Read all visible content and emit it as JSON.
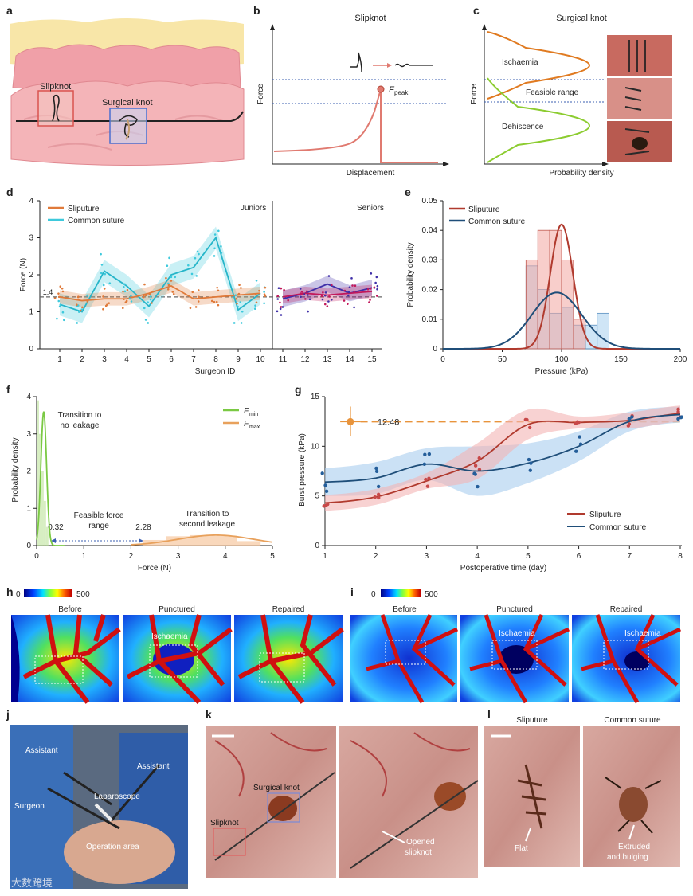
{
  "panel_letters": {
    "a": "a",
    "b": "b",
    "c": "c",
    "d": "d",
    "e": "e",
    "f": "f",
    "g": "g",
    "h": "h",
    "i": "i",
    "j": "j",
    "k": "k",
    "l": "l"
  },
  "panel_a": {
    "slipknot": "Slipknot",
    "surgical_knot": "Surgical knot"
  },
  "panel_b": {
    "title": "Slipknot",
    "ylabel": "Force",
    "xlabel": "Displacement",
    "peak_label": "F",
    "peak_sub": "peak"
  },
  "panel_c": {
    "title": "Surgical knot",
    "ylabel": "Force",
    "xlabel": "Probability density",
    "regions": [
      "Ischaemia",
      "Feasible range",
      "Dehiscence"
    ]
  },
  "panel_h": {
    "scale_min": "0",
    "scale_max": "500",
    "labels": [
      "Before",
      "Punctured",
      "Repaired"
    ],
    "ischaemia": "Ischaemia"
  },
  "panel_i": {
    "scale_min": "0",
    "scale_max": "500",
    "labels": [
      "Before",
      "Punctured",
      "Repaired"
    ],
    "ischaemia": "Ischaemia"
  },
  "panel_j": {
    "labels": [
      "Assistant",
      "Assistant",
      "Surgeon",
      "Laparoscope",
      "Operation area"
    ]
  },
  "panel_k": {
    "surgical_knot": "Surgical knot",
    "slipknot": "Slipknot",
    "opened_1": "Opened",
    "opened_2": "slipknot"
  },
  "panel_l": {
    "titles": [
      "Sliputure",
      "Common suture"
    ],
    "flat": "Flat",
    "extruded_1": "Extruded",
    "extruded_2": "and bulging"
  },
  "watermark": "大数跨境",
  "colors": {
    "sliputure": "#e07a3a",
    "common": "#3ec9dc",
    "sliputure_e": "#b03a2e",
    "common_e": "#1f4e79",
    "fmin": "#7ac943",
    "fmax": "#e8a15c",
    "junior_slip": "#e07a3a",
    "senior_slip": "#c2185b",
    "senior_common": "#3f2fa8"
  },
  "chart_data": [
    {
      "id": "d",
      "type": "line",
      "xlabel": "Surgeon ID",
      "ylabel": "Force (N)",
      "ylim": [
        0,
        4
      ],
      "yticks": [
        "0",
        "1",
        "2",
        "3",
        "4"
      ],
      "categories": [
        "1",
        "2",
        "3",
        "4",
        "5",
        "6",
        "7",
        "8",
        "9",
        "10",
        "11",
        "12",
        "13",
        "14",
        "15"
      ],
      "group_labels": {
        "juniors": "Juniors",
        "seniors": "Seniors"
      },
      "reference_line": {
        "value": 1.4,
        "label": "1.4"
      },
      "series": [
        {
          "name": "Sliputure",
          "values": [
            1.4,
            1.3,
            1.35,
            1.35,
            1.5,
            1.7,
            1.35,
            1.4,
            1.45,
            1.5,
            1.4,
            1.5,
            1.45,
            1.5,
            1.55
          ]
        },
        {
          "name": "Common suture",
          "values": [
            1.2,
            1.0,
            2.1,
            1.7,
            1.15,
            2.0,
            2.2,
            3.0,
            1.05,
            1.5,
            1.35,
            1.5,
            1.75,
            1.5,
            1.65
          ]
        }
      ]
    },
    {
      "id": "e",
      "type": "bar",
      "xlabel": "Pressure (kPa)",
      "ylabel": "Probability density",
      "xlim": [
        0,
        200
      ],
      "ylim": [
        0,
        0.05
      ],
      "xticks": [
        "0",
        "50",
        "100",
        "150",
        "200"
      ],
      "yticks": [
        "0",
        "0.01",
        "0.02",
        "0.03",
        "0.04",
        "0.05"
      ],
      "series": [
        {
          "name": "Sliputure",
          "bins": [
            70,
            80,
            90,
            100,
            110
          ],
          "values": [
            0.03,
            0.04,
            0.04,
            0.03,
            0.01
          ],
          "fit": {
            "mean": 100,
            "sd": 9.5
          }
        },
        {
          "name": "Common suture",
          "bins": [
            70,
            80,
            90,
            100,
            110,
            120,
            130
          ],
          "values": [
            0.028,
            0.02,
            0.012,
            0.014,
            0.008,
            0.008,
            0.012
          ],
          "fit": {
            "mean": 96,
            "sd": 21
          }
        }
      ]
    },
    {
      "id": "f",
      "type": "area",
      "xlabel": "Force (N)",
      "ylabel": "Probability density",
      "xlim": [
        0,
        5
      ],
      "ylim": [
        0,
        4
      ],
      "xticks": [
        "0",
        "1",
        "2",
        "3",
        "4",
        "5"
      ],
      "yticks": [
        "0",
        "1",
        "2",
        "3",
        "4"
      ],
      "series": [
        {
          "name": "F",
          "sub": "min",
          "peak": 0.15,
          "height": 3.6
        },
        {
          "name": "F",
          "sub": "max",
          "peak": 3.8,
          "height": 0.28
        }
      ],
      "annotations": {
        "low": "0.32",
        "high": "2.28",
        "no_leak_1": "Transition to",
        "no_leak_2": "no leakage",
        "feasible_1": "Feasible force",
        "feasible_2": "range",
        "second_1": "Transition to",
        "second_2": "second leakage"
      }
    },
    {
      "id": "g",
      "type": "scatter",
      "xlabel": "Postoperative time (day)",
      "ylabel": "Burst pressure (kPa)",
      "xlim": [
        1,
        8
      ],
      "ylim": [
        0,
        15
      ],
      "xticks": [
        "1",
        "2",
        "3",
        "4",
        "5",
        "6",
        "7",
        "8"
      ],
      "yticks": [
        "0",
        "5",
        "10",
        "15"
      ],
      "reference": {
        "value": 12.48,
        "label": "12.48"
      },
      "series": [
        {
          "name": "Sliputure",
          "x": [
            1,
            2,
            3,
            4,
            5,
            6,
            7,
            8
          ],
          "y": [
            4.3,
            4.9,
            6.5,
            8.5,
            12.2,
            12.4,
            12.6,
            13.3
          ]
        },
        {
          "name": "Common suture",
          "x": [
            1,
            2,
            3,
            4,
            5,
            6,
            7,
            8
          ],
          "y": [
            6.4,
            6.8,
            8.2,
            7.5,
            8.3,
            10.0,
            12.5,
            13.2
          ]
        }
      ]
    }
  ]
}
